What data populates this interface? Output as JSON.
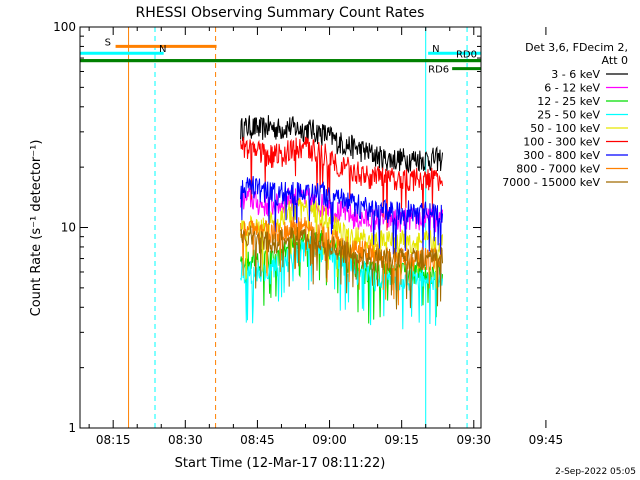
{
  "chart_data": {
    "type": "line",
    "title": "RHESSI Observing Summary Count Rates",
    "xlabel": "Start Time (12-Mar-17 08:11:22)",
    "ylabel": "Count Rate (s⁻¹ detector⁻¹)",
    "ylog": true,
    "ylim": [
      1,
      100
    ],
    "xlim_minutes": [
      8.1,
      91.5
    ],
    "xtick_labels": [
      "08:15",
      "08:30",
      "08:45",
      "09:00",
      "09:15",
      "09:30",
      "09:45"
    ],
    "xtick_minutes": [
      15,
      30,
      45,
      60,
      75,
      90,
      105
    ],
    "ytick_labels": [
      "1",
      "10",
      "100"
    ],
    "ytick_values": [
      1,
      10,
      100
    ],
    "legend_header": [
      "Det 3,6, FDecim 2,",
      "Att 0"
    ],
    "legend_position": "right",
    "series": [
      {
        "name": "3 - 6 keV",
        "color": "#000000",
        "start_min": 41.5,
        "end_min": 83.5,
        "values": [
          31,
          32,
          31,
          32,
          31,
          32,
          31,
          31,
          30,
          29,
          27,
          26,
          25,
          24,
          23,
          22,
          22,
          22,
          22,
          22,
          22,
          22
        ]
      },
      {
        "name": "6 - 12 keV",
        "color": "#ff00ff",
        "start_min": 41.5,
        "end_min": 83.5,
        "values": [
          14,
          14,
          13,
          13,
          13,
          14,
          14,
          14,
          13,
          13,
          12,
          12,
          11,
          11,
          11,
          11,
          11,
          11,
          11,
          11,
          11,
          11
        ]
      },
      {
        "name": "12 - 25 keV",
        "color": "#00dd00",
        "start_min": 41.5,
        "end_min": 83.5,
        "values": [
          7,
          7,
          7,
          7,
          7,
          8,
          9,
          9,
          9,
          8,
          8,
          7,
          6.5,
          6,
          6,
          6,
          6,
          6,
          6,
          6,
          6,
          6
        ]
      },
      {
        "name": "25 - 50 keV",
        "color": "#00ffff",
        "start_min": 41.5,
        "end_min": 83.5,
        "values": [
          6,
          6,
          6,
          6,
          6.5,
          7,
          7.5,
          8,
          8,
          7.5,
          7,
          6.5,
          6,
          6,
          5.5,
          5.5,
          5.5,
          5.5,
          5.5,
          5.5,
          5.5,
          5.5
        ]
      },
      {
        "name": "50 - 100 keV",
        "color": "#e6e600",
        "start_min": 41.5,
        "end_min": 83.5,
        "values": [
          10,
          10,
          10,
          10.5,
          11,
          12,
          12.5,
          12.5,
          12,
          11,
          10,
          9,
          9,
          8.5,
          8.5,
          8.5,
          8.5,
          8.5,
          8.5,
          8.5,
          8.5,
          8.5
        ]
      },
      {
        "name": "100 - 300 keV",
        "color": "#ff0000",
        "start_min": 41.5,
        "end_min": 83.5,
        "values": [
          25,
          25,
          24,
          23,
          23,
          24,
          25,
          25,
          24,
          23,
          21,
          20,
          19,
          18,
          18,
          17.5,
          17.5,
          17.5,
          17.5,
          17.5,
          17.5,
          17.5
        ]
      },
      {
        "name": "300 - 800 keV",
        "color": "#0000ff",
        "start_min": 41.5,
        "end_min": 83.5,
        "values": [
          16,
          16,
          15.5,
          15,
          15,
          15,
          15,
          15,
          15,
          14.5,
          14,
          13.5,
          13,
          12.5,
          12,
          12,
          12,
          12,
          12,
          12,
          12,
          12
        ]
      },
      {
        "name": "800 - 7000 keV",
        "color": "#ff8000",
        "start_min": 41.5,
        "end_min": 83.5,
        "values": [
          10,
          10,
          9.5,
          9.5,
          9.5,
          10,
          10,
          10,
          9.5,
          9,
          8.5,
          8,
          8,
          7.5,
          7.5,
          7,
          7,
          7,
          7,
          7,
          7,
          7
        ]
      },
      {
        "name": "7000 - 15000 keV",
        "color": "#a06a00",
        "start_min": 41.5,
        "end_min": 83.5,
        "values": [
          9,
          9,
          8.5,
          8.5,
          8.5,
          9,
          9,
          9,
          8.5,
          8,
          8,
          7.5,
          7.5,
          7,
          7,
          7,
          7,
          7,
          7,
          7,
          7,
          7
        ]
      }
    ],
    "flag_bars": [
      {
        "label": "S",
        "color": "#ff8000",
        "y": 80,
        "start_min": 15.5,
        "end_min": 36.5
      },
      {
        "label": "N",
        "color": "#00ffff",
        "y": 74,
        "start_min": 8.1,
        "end_min": 25.5
      },
      {
        "label": "N",
        "color": "#00ffff",
        "y": 74,
        "start_min": 80.5,
        "end_min": 91.5
      },
      {
        "label": "",
        "color": "#008000",
        "y": 68,
        "start_min": 8.1,
        "end_min": 91.5
      },
      {
        "label": "RD0",
        "color": "#008000",
        "y": 68,
        "start_min": 8.1,
        "end_min": 91.5
      },
      {
        "label": "RD6",
        "color": "#008000",
        "y": 62,
        "start_min": 85.5,
        "end_min": 91.5
      }
    ],
    "vertical_markers": [
      {
        "minute": 8.1,
        "color": "#00ffff",
        "style": "solid"
      },
      {
        "minute": 18.2,
        "color": "#ff8000",
        "style": "solid"
      },
      {
        "minute": 23.7,
        "color": "#00ffff",
        "style": "dashed"
      },
      {
        "minute": 36.3,
        "color": "#ff8000",
        "style": "dashed"
      },
      {
        "minute": 80.0,
        "color": "#00ffff",
        "style": "solid"
      },
      {
        "minute": 88.6,
        "color": "#00ffff",
        "style": "dashed"
      }
    ]
  },
  "footer": {
    "timestamp": "2-Sep-2022 05:05"
  }
}
